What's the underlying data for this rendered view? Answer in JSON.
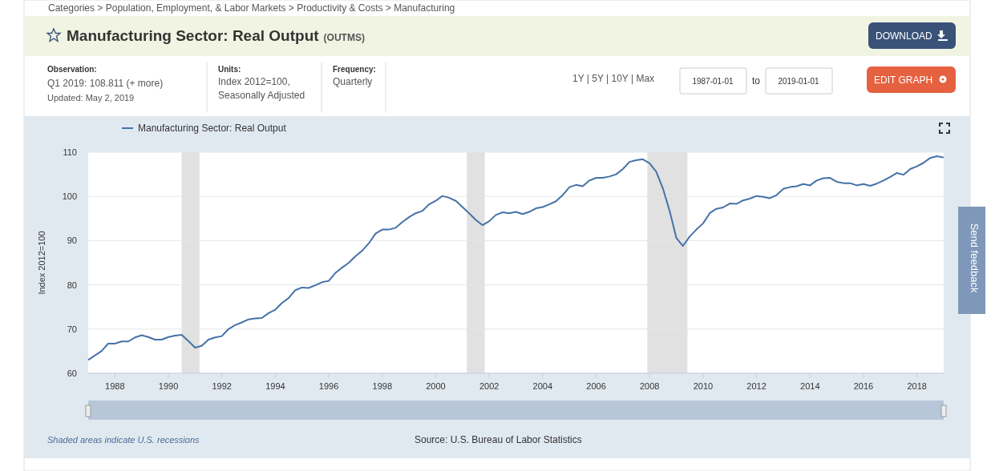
{
  "chart_data": {
    "type": "line",
    "title": "Manufacturing Sector: Real Output",
    "subtitle": "(OUTMS)",
    "ylabel": "Index 2012=100",
    "annotations": [
      "Categories > Population, Employment, & Labor Markets > Productivity & Costs > Manufacturing",
      "Observation:",
      "Q1 2019: 108.811 (+ more)",
      "Updated: May 2, 2019",
      "Units:",
      "Index 2012=100,",
      "Seasonally Adjusted",
      "Frequency:",
      "Quarterly",
      "1Y | 5Y | 10Y | Max",
      "1987-01-01",
      "to",
      "2019-01-01",
      "DOWNLOAD",
      "EDIT GRAPH",
      "Shaded areas indicate U.S. recessions",
      "Source: U.S. Bureau of Labor Statistics",
      "Send feedback"
    ],
    "x": [
      "1987-01",
      "1987-04",
      "1987-07",
      "1987-10",
      "1988-01",
      "1988-04",
      "1988-07",
      "1988-10",
      "1989-01",
      "1989-04",
      "1989-07",
      "1989-10",
      "1990-01",
      "1990-04",
      "1990-07",
      "1990-10",
      "1991-01",
      "1991-04",
      "1991-07",
      "1991-10",
      "1992-01",
      "1992-04",
      "1992-07",
      "1992-10",
      "1993-01",
      "1993-04",
      "1993-07",
      "1993-10",
      "1994-01",
      "1994-04",
      "1994-07",
      "1994-10",
      "1995-01",
      "1995-04",
      "1995-07",
      "1995-10",
      "1996-01",
      "1996-04",
      "1996-07",
      "1996-10",
      "1997-01",
      "1997-04",
      "1997-07",
      "1997-10",
      "1998-01",
      "1998-04",
      "1998-07",
      "1998-10",
      "1999-01",
      "1999-04",
      "1999-07",
      "1999-10",
      "2000-01",
      "2000-04",
      "2000-07",
      "2000-10",
      "2001-01",
      "2001-04",
      "2001-07",
      "2001-10",
      "2002-01",
      "2002-04",
      "2002-07",
      "2002-10",
      "2003-01",
      "2003-04",
      "2003-07",
      "2003-10",
      "2004-01",
      "2004-04",
      "2004-07",
      "2004-10",
      "2005-01",
      "2005-04",
      "2005-07",
      "2005-10",
      "2006-01",
      "2006-04",
      "2006-07",
      "2006-10",
      "2007-01",
      "2007-04",
      "2007-07",
      "2007-10",
      "2008-01",
      "2008-04",
      "2008-07",
      "2008-10",
      "2009-01",
      "2009-04",
      "2009-07",
      "2009-10",
      "2010-01",
      "2010-04",
      "2010-07",
      "2010-10",
      "2011-01",
      "2011-04",
      "2011-07",
      "2011-10",
      "2012-01",
      "2012-04",
      "2012-07",
      "2012-10",
      "2013-01",
      "2013-04",
      "2013-07",
      "2013-10",
      "2014-01",
      "2014-04",
      "2014-07",
      "2014-10",
      "2015-01",
      "2015-04",
      "2015-07",
      "2015-10",
      "2016-01",
      "2016-04",
      "2016-07",
      "2016-10",
      "2017-01",
      "2017-04",
      "2017-07",
      "2017-10",
      "2018-01",
      "2018-04",
      "2018-07",
      "2018-10",
      "2019-01"
    ],
    "series": [
      {
        "name": "Manufacturing Sector: Real Output",
        "color": "#4572a7",
        "values": [
          63.0,
          64.0,
          65.0,
          66.7,
          66.7,
          67.2,
          67.2,
          68.1,
          68.6,
          68.2,
          67.6,
          67.6,
          68.2,
          68.5,
          68.7,
          67.3,
          65.8,
          66.2,
          67.6,
          68.1,
          68.4,
          70.0,
          70.9,
          71.5,
          72.2,
          72.4,
          72.5,
          73.6,
          74.4,
          75.9,
          77.0,
          78.8,
          79.4,
          79.3,
          79.9,
          80.6,
          80.9,
          82.7,
          83.9,
          85.0,
          86.5,
          87.7,
          89.4,
          91.6,
          92.5,
          92.5,
          92.9,
          94.2,
          95.3,
          96.2,
          96.7,
          98.2,
          99.0,
          100.1,
          99.7,
          99.0,
          97.6,
          96.2,
          94.7,
          93.5,
          94.4,
          95.8,
          96.4,
          96.2,
          96.5,
          96.0,
          96.5,
          97.3,
          97.6,
          98.2,
          98.9,
          100.3,
          102.1,
          102.6,
          102.3,
          103.6,
          104.2,
          104.2,
          104.5,
          105.0,
          106.2,
          107.8,
          108.2,
          108.4,
          107.5,
          105.6,
          101.8,
          96.7,
          90.6,
          88.8,
          90.9,
          92.5,
          93.9,
          96.2,
          97.2,
          97.5,
          98.4,
          98.3,
          99.1,
          99.5,
          100.1,
          99.9,
          99.6,
          100.3,
          101.7,
          102.1,
          102.3,
          102.8,
          102.5,
          103.6,
          104.1,
          104.2,
          103.3,
          103.0,
          103.0,
          102.5,
          102.8,
          102.4,
          102.9,
          103.6,
          104.4,
          105.3,
          104.9,
          106.2,
          106.8,
          107.6,
          108.7,
          109.1,
          108.8
        ]
      }
    ],
    "xlim": [
      "1987-01-01",
      "2019-01-01"
    ],
    "xticks": [
      "1988",
      "1990",
      "1992",
      "1994",
      "1996",
      "1998",
      "2000",
      "2002",
      "2004",
      "2006",
      "2008",
      "2010",
      "2012",
      "2014",
      "2016",
      "2018"
    ],
    "ylim": [
      60,
      110
    ],
    "yticks": [
      60,
      70,
      80,
      90,
      100,
      110
    ],
    "grid": "y",
    "legend": "top left",
    "line_style": "solid",
    "marker": "none",
    "bands": [
      {
        "axis": "x",
        "from": "1990-07-01",
        "to": "1991-03-01",
        "color": "#e1e1e1"
      },
      {
        "axis": "x",
        "from": "2001-03-01",
        "to": "2001-11-01",
        "color": "#e1e1e1"
      },
      {
        "axis": "x",
        "from": "2007-12-01",
        "to": "2009-06-01",
        "color": "#e1e1e1"
      }
    ]
  }
}
